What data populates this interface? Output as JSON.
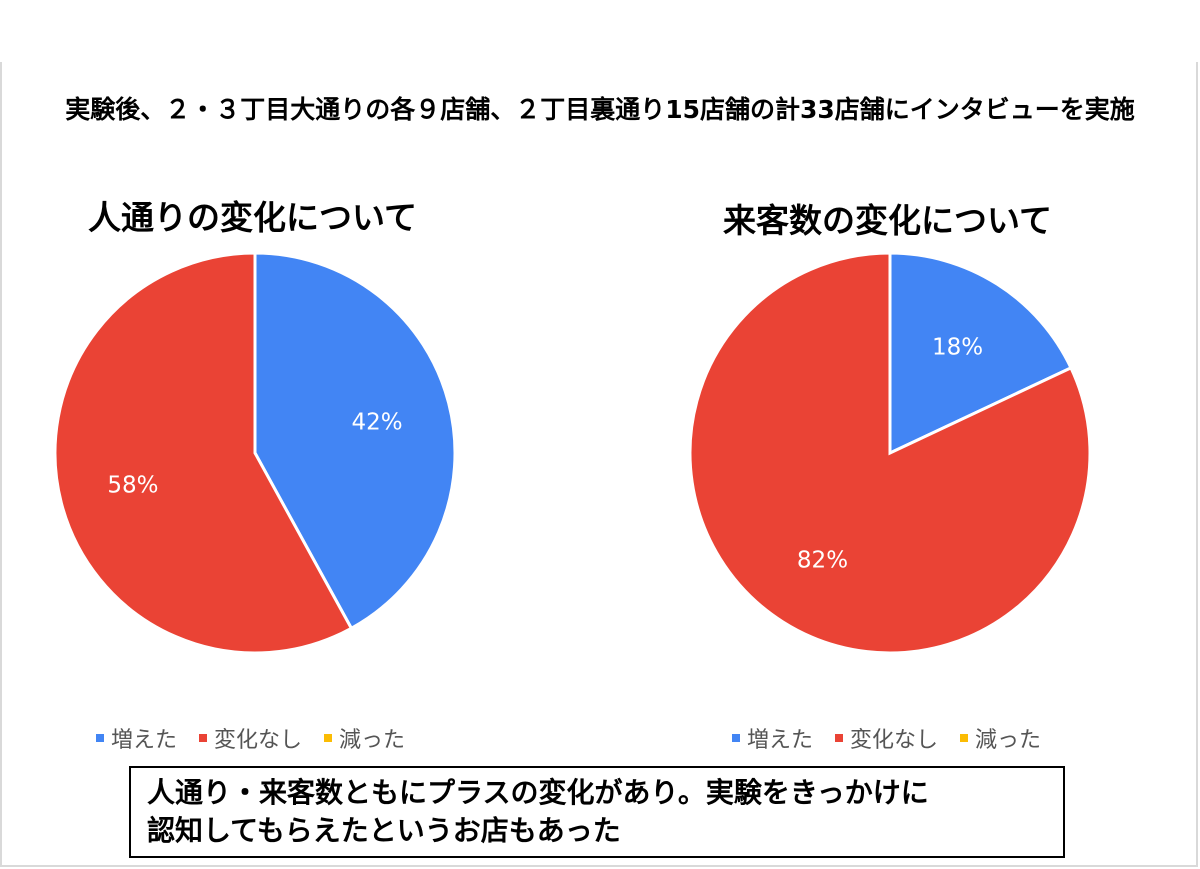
{
  "headline": "実験後、２・３丁目大通りの各９店舗、２丁目裏通り15店舗の計33店舗にインタビューを実施",
  "conclusion": {
    "line1": "人通り・来客数ともにプラスの変化があり。実験をきっかけに",
    "line2": "認知してもらえたというお店もあった"
  },
  "chart_data": [
    {
      "type": "pie",
      "title": "人通りの変化について",
      "categories": [
        "増えた",
        "変化なし",
        "減った"
      ],
      "values": [
        42,
        58,
        0
      ],
      "labels": [
        "42%",
        "58%",
        ""
      ],
      "colors": [
        "#4285f4",
        "#ea4335",
        "#fbbc04"
      ],
      "legend_position": "bottom"
    },
    {
      "type": "pie",
      "title": "来客数の変化について",
      "categories": [
        "増えた",
        "変化なし",
        "減った"
      ],
      "values": [
        18,
        82,
        0
      ],
      "labels": [
        "18%",
        "82%",
        ""
      ],
      "colors": [
        "#4285f4",
        "#ea4335",
        "#fbbc04"
      ],
      "legend_position": "bottom"
    }
  ]
}
